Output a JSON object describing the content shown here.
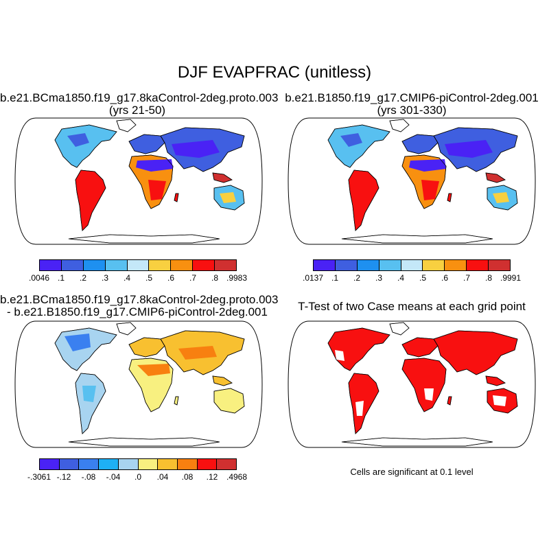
{
  "title": "DJF EVAPFRAC (unitless)",
  "panels": {
    "case1": {
      "title_line1": "b.e21.BCma1850.f19_g17.8kaControl-2deg.proto.003",
      "title_line2": "(yrs 21-50)"
    },
    "case2": {
      "title_line1": "b.e21.B1850.f19_g17.CMIP6-piControl-2deg.001",
      "title_line2": "(yrs 301-330)"
    },
    "diff": {
      "title_line1": "b.e21.BCma1850.f19_g17.8kaControl-2deg.proto.003",
      "title_line2": "- b.e21.B1850.f19_g17.CMIP6-piControl-2deg.001"
    },
    "ttest": {
      "title": "T-Test of two Case means at each grid point",
      "note": "Cells are significant at 0.1 level"
    }
  },
  "colorbars": {
    "case1": {
      "labels": [
        ".0046",
        ".1",
        ".2",
        ".3",
        ".4",
        ".5",
        ".6",
        ".7",
        ".8",
        ".9983"
      ],
      "colors": [
        "#4a22f5",
        "#3f5fe0",
        "#1e90f0",
        "#58c0f0",
        "#c4e8f8",
        "#f8d040",
        "#f89010",
        "#f81010",
        "#d03030"
      ]
    },
    "case2": {
      "labels": [
        ".0137",
        ".1",
        ".2",
        ".3",
        ".4",
        ".5",
        ".6",
        ".7",
        ".8",
        ".9991"
      ],
      "colors": [
        "#4a22f5",
        "#3f5fe0",
        "#1e90f0",
        "#58c0f0",
        "#c4e8f8",
        "#f8d040",
        "#f89010",
        "#f81010",
        "#d03030"
      ]
    },
    "diff": {
      "labels": [
        "-.3061",
        "-.12",
        "-.08",
        "-.04",
        ".0",
        ".04",
        ".08",
        ".12",
        ".4968"
      ],
      "colors": [
        "#4a22f5",
        "#3f5fe0",
        "#3a80f0",
        "#1eb0f5",
        "#a8d4f0",
        "#f8f080",
        "#f8c030",
        "#f88010",
        "#f81010",
        "#d03030"
      ]
    }
  }
}
